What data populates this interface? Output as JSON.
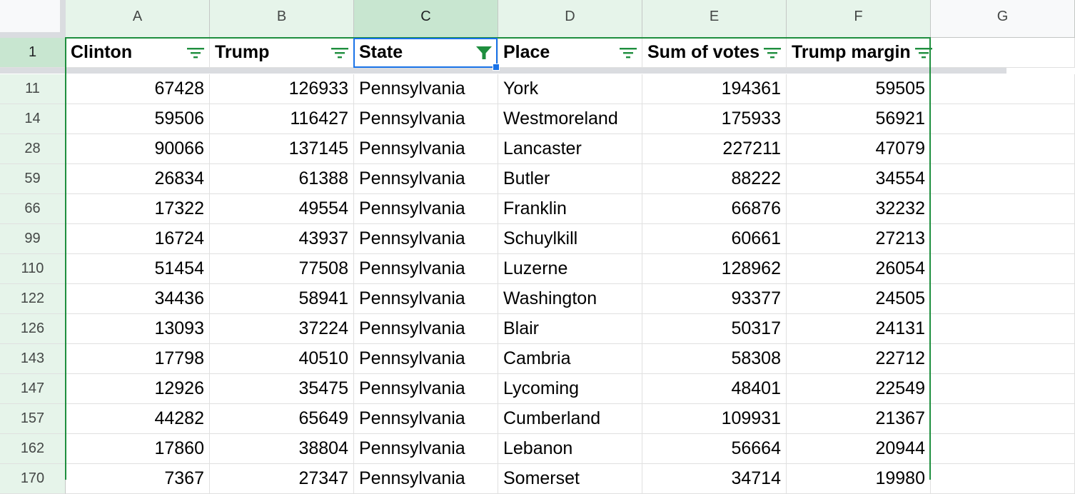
{
  "columns": [
    "A",
    "B",
    "C",
    "D",
    "E",
    "F",
    "G"
  ],
  "header_row_number": "1",
  "header_cells": {
    "a": "Clinton",
    "b": "Trump",
    "c": "State",
    "d": "Place",
    "e": "Sum of votes",
    "f": "Trump margin"
  },
  "colors": {
    "filter_green": "#1e8e3e",
    "selection_blue": "#1a73e8",
    "header_tint": "#e6f4ea"
  },
  "rows": [
    {
      "n": "11",
      "clinton": "67428",
      "trump": "126933",
      "state": "Pennsylvania",
      "place": "York",
      "votes": "194361",
      "margin": "59505"
    },
    {
      "n": "14",
      "clinton": "59506",
      "trump": "116427",
      "state": "Pennsylvania",
      "place": "Westmoreland",
      "votes": "175933",
      "margin": "56921"
    },
    {
      "n": "28",
      "clinton": "90066",
      "trump": "137145",
      "state": "Pennsylvania",
      "place": "Lancaster",
      "votes": "227211",
      "margin": "47079"
    },
    {
      "n": "59",
      "clinton": "26834",
      "trump": "61388",
      "state": "Pennsylvania",
      "place": "Butler",
      "votes": "88222",
      "margin": "34554"
    },
    {
      "n": "66",
      "clinton": "17322",
      "trump": "49554",
      "state": "Pennsylvania",
      "place": "Franklin",
      "votes": "66876",
      "margin": "32232"
    },
    {
      "n": "99",
      "clinton": "16724",
      "trump": "43937",
      "state": "Pennsylvania",
      "place": "Schuylkill",
      "votes": "60661",
      "margin": "27213"
    },
    {
      "n": "110",
      "clinton": "51454",
      "trump": "77508",
      "state": "Pennsylvania",
      "place": "Luzerne",
      "votes": "128962",
      "margin": "26054"
    },
    {
      "n": "122",
      "clinton": "34436",
      "trump": "58941",
      "state": "Pennsylvania",
      "place": "Washington",
      "votes": "93377",
      "margin": "24505"
    },
    {
      "n": "126",
      "clinton": "13093",
      "trump": "37224",
      "state": "Pennsylvania",
      "place": "Blair",
      "votes": "50317",
      "margin": "24131"
    },
    {
      "n": "143",
      "clinton": "17798",
      "trump": "40510",
      "state": "Pennsylvania",
      "place": "Cambria",
      "votes": "58308",
      "margin": "22712"
    },
    {
      "n": "147",
      "clinton": "12926",
      "trump": "35475",
      "state": "Pennsylvania",
      "place": "Lycoming",
      "votes": "48401",
      "margin": "22549"
    },
    {
      "n": "157",
      "clinton": "44282",
      "trump": "65649",
      "state": "Pennsylvania",
      "place": "Cumberland",
      "votes": "109931",
      "margin": "21367"
    },
    {
      "n": "162",
      "clinton": "17860",
      "trump": "38804",
      "state": "Pennsylvania",
      "place": "Lebanon",
      "votes": "56664",
      "margin": "20944"
    },
    {
      "n": "170",
      "clinton": "7367",
      "trump": "27347",
      "state": "Pennsylvania",
      "place": "Somerset",
      "votes": "34714",
      "margin": "19980"
    }
  ]
}
